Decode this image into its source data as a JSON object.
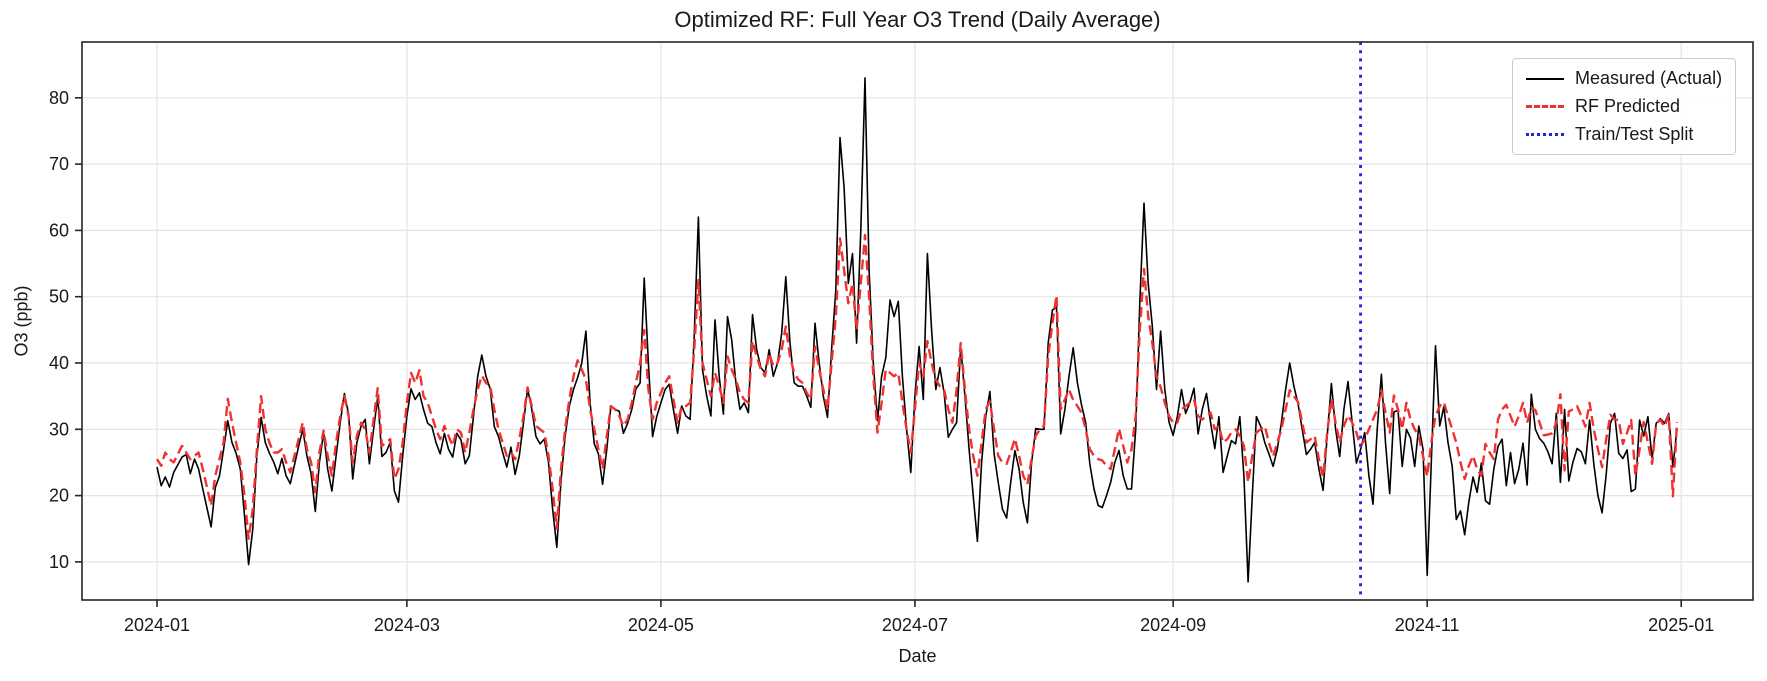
{
  "chart_data": {
    "type": "line",
    "title": "Optimized RF: Full Year O3 Trend (Daily Average)",
    "xlabel": "Date",
    "ylabel": "O3 (ppb)",
    "x_unit": "days since 2024-01-01",
    "grid": true,
    "legend_position": "upper right",
    "ylim": [
      4.3,
      88.4
    ],
    "xlim_days": [
      -18,
      383
    ],
    "y_ticks": [
      10,
      20,
      30,
      40,
      50,
      60,
      70,
      80
    ],
    "x_ticks": [
      {
        "label": "2024-01",
        "day": 0
      },
      {
        "label": "2024-03",
        "day": 60
      },
      {
        "label": "2024-05",
        "day": 121
      },
      {
        "label": "2024-07",
        "day": 182
      },
      {
        "label": "2024-09",
        "day": 244
      },
      {
        "label": "2024-11",
        "day": 305
      },
      {
        "label": "2025-01",
        "day": 366
      }
    ],
    "x_days": [
      0,
      1,
      2,
      3,
      4,
      6,
      7,
      8,
      9,
      10,
      11,
      13,
      14,
      15,
      16,
      17,
      18,
      19,
      20,
      21,
      22,
      23,
      24,
      25,
      26,
      27,
      28,
      29,
      30,
      31,
      32,
      34,
      35,
      36,
      37,
      38,
      39,
      40,
      41,
      42,
      43,
      44,
      45,
      46,
      47,
      48,
      49,
      50,
      51,
      52,
      53,
      54,
      55,
      56,
      57,
      58,
      59,
      60,
      61,
      62,
      63,
      64,
      65,
      66,
      67,
      68,
      69,
      70,
      71,
      72,
      73,
      74,
      75,
      76,
      77,
      78,
      79,
      80,
      81,
      82,
      83,
      84,
      85,
      86,
      87,
      88,
      89,
      90,
      91,
      92,
      93,
      94,
      95,
      96,
      97,
      98,
      99,
      100,
      101,
      102,
      103,
      104,
      105,
      106,
      107,
      108,
      109,
      110,
      111,
      112,
      113,
      114,
      115,
      116,
      117,
      118,
      119,
      120,
      121,
      122,
      123,
      124,
      125,
      126,
      127,
      128,
      129,
      130,
      131,
      132,
      133,
      134,
      135,
      136,
      137,
      138,
      139,
      140,
      141,
      142,
      143,
      144,
      145,
      146,
      147,
      148,
      149,
      150,
      151,
      152,
      153,
      154,
      155,
      156,
      157,
      158,
      159,
      160,
      161,
      162,
      163,
      164,
      165,
      166,
      167,
      168,
      169,
      170,
      171,
      172,
      173,
      174,
      175,
      176,
      177,
      178,
      179,
      180,
      181,
      182,
      183,
      184,
      185,
      186,
      187,
      188,
      189,
      190,
      191,
      192,
      193,
      194,
      195,
      196,
      197,
      198,
      199,
      200,
      201,
      202,
      203,
      204,
      205,
      206,
      207,
      208,
      209,
      210,
      211,
      212,
      213,
      214,
      215,
      216,
      217,
      218,
      219,
      220,
      221,
      222,
      223,
      224,
      225,
      226,
      227,
      228,
      229,
      230,
      231,
      232,
      233,
      234,
      235,
      236,
      237,
      238,
      239,
      240,
      241,
      242,
      243,
      244,
      245,
      246,
      247,
      248,
      249,
      250,
      251,
      252,
      253,
      254,
      255,
      256,
      257,
      258,
      259,
      260,
      261,
      262,
      263,
      264,
      265,
      266,
      267,
      268,
      269,
      270,
      271,
      272,
      273,
      274,
      275,
      276,
      277,
      278,
      279,
      280,
      281,
      282,
      283,
      284,
      285,
      286,
      287,
      288,
      289,
      290,
      291,
      292,
      293,
      294,
      295,
      296,
      297,
      298,
      299,
      300,
      301,
      302,
      303,
      304,
      305,
      306,
      307,
      308,
      309,
      310,
      311,
      312,
      313,
      314,
      315,
      316,
      317,
      318,
      319,
      320,
      321,
      322,
      323,
      324,
      325,
      326,
      327,
      328,
      329,
      330,
      331,
      332,
      333,
      334,
      335,
      336,
      337,
      338,
      339,
      340,
      341,
      342,
      343,
      344,
      345,
      346,
      347,
      348,
      349,
      350,
      351,
      352,
      353,
      354,
      355,
      356,
      357,
      358,
      359,
      360,
      361,
      362,
      363,
      364,
      365
    ],
    "series": [
      {
        "name": "Measured (Actual)",
        "color": "#000000",
        "line_style": "solid",
        "values": [
          24.3,
          21.5,
          22.8,
          21.3,
          23.5,
          25.8,
          26.2,
          23.3,
          25.5,
          24.0,
          21.0,
          15.3,
          21.2,
          23.0,
          27.0,
          31.3,
          28.0,
          26.4,
          24.0,
          17.0,
          9.6,
          15.0,
          26.0,
          31.8,
          28.0,
          26.4,
          25.1,
          23.3,
          25.6,
          23.0,
          21.8,
          27.4,
          30.0,
          26.0,
          23.3,
          17.6,
          25.0,
          29.5,
          24.0,
          20.7,
          26.0,
          31.0,
          35.4,
          32.3,
          22.5,
          28.0,
          30.5,
          31.5,
          24.8,
          30.0,
          34.9,
          25.9,
          26.5,
          28.0,
          20.7,
          19.0,
          26.0,
          32.0,
          36.1,
          34.5,
          35.5,
          33.0,
          30.9,
          30.4,
          28.0,
          26.3,
          29.4,
          27.0,
          25.8,
          29.4,
          28.4,
          24.8,
          26.0,
          32.0,
          38.0,
          41.2,
          38.0,
          36.1,
          30.4,
          28.9,
          26.5,
          24.3,
          27.3,
          23.2,
          26.0,
          31.0,
          36.1,
          33.0,
          28.9,
          27.8,
          28.5,
          25.0,
          18.0,
          12.2,
          22.2,
          28.9,
          33.5,
          36.0,
          37.8,
          40.0,
          44.8,
          34.0,
          27.8,
          26.3,
          21.7,
          27.0,
          33.5,
          33.0,
          32.7,
          29.4,
          30.9,
          33.0,
          36.1,
          37.0,
          52.8,
          40.0,
          28.9,
          31.9,
          34.0,
          36.0,
          36.8,
          33.0,
          29.4,
          33.5,
          32.0,
          31.5,
          44.0,
          62.0,
          39.0,
          35.0,
          32.0,
          46.5,
          38.0,
          32.3,
          47.0,
          43.5,
          37.0,
          33.0,
          34.0,
          32.5,
          47.3,
          42.0,
          39.3,
          38.5,
          42.0,
          38.0,
          40.0,
          44.5,
          53.0,
          43.0,
          37.0,
          36.5,
          36.5,
          35.0,
          33.3,
          46.0,
          40.0,
          35.0,
          31.8,
          42.0,
          51.0,
          74.0,
          66.5,
          52.0,
          56.5,
          43.0,
          60.0,
          83.0,
          54.0,
          40.0,
          31.3,
          38.0,
          40.8,
          49.5,
          47.0,
          49.3,
          38.0,
          30.0,
          23.5,
          35.0,
          42.5,
          34.5,
          56.5,
          45.0,
          36.0,
          39.3,
          35.5,
          28.8,
          30.0,
          31.0,
          42.5,
          35.0,
          27.0,
          20.0,
          13.1,
          25.0,
          31.9,
          35.7,
          26.3,
          22.0,
          18.0,
          16.6,
          22.0,
          26.8,
          24.0,
          19.0,
          15.9,
          24.8,
          30.1,
          30.0,
          30.0,
          43.0,
          48.0,
          48.4,
          29.3,
          33.0,
          38.0,
          42.3,
          37.0,
          33.7,
          31.0,
          24.8,
          21.0,
          18.5,
          18.2,
          20.0,
          22.0,
          25.0,
          26.8,
          23.0,
          21.0,
          21.0,
          30.0,
          49.1,
          64.1,
          52.0,
          45.6,
          36.0,
          44.8,
          36.0,
          31.1,
          29.1,
          31.9,
          36.0,
          32.4,
          34.0,
          36.2,
          29.3,
          33.0,
          35.4,
          31.0,
          27.1,
          31.9,
          23.5,
          26.0,
          28.3,
          27.8,
          31.9,
          23.0,
          7.0,
          20.0,
          31.9,
          30.5,
          28.0,
          26.3,
          24.4,
          27.0,
          31.0,
          36.0,
          40.0,
          36.5,
          33.8,
          30.0,
          26.2,
          27.0,
          28.0,
          24.0,
          20.8,
          29.0,
          36.9,
          30.0,
          25.9,
          33.0,
          37.2,
          31.0,
          24.9,
          26.9,
          29.5,
          23.0,
          18.7,
          30.0,
          38.3,
          28.0,
          20.3,
          32.6,
          32.9,
          24.4,
          30.0,
          28.7,
          24.4,
          30.5,
          27.0,
          8.0,
          25.0,
          42.6,
          30.5,
          33.4,
          28.0,
          24.4,
          16.4,
          17.7,
          14.1,
          19.0,
          22.8,
          20.5,
          24.9,
          19.2,
          18.7,
          24.0,
          27.4,
          28.5,
          21.5,
          26.5,
          21.8,
          24.0,
          27.9,
          21.6,
          35.3,
          30.0,
          28.6,
          27.9,
          26.6,
          24.8,
          32.4,
          22.0,
          33.0,
          22.2,
          25.0,
          27.1,
          26.6,
          24.8,
          31.4,
          24.8,
          20.0,
          17.4,
          23.2,
          30.9,
          32.4,
          26.4,
          25.6,
          26.9,
          20.6,
          21.0,
          31.4,
          29.0,
          31.9,
          25.6,
          30.9,
          31.6,
          30.9,
          32.4,
          24.3,
          30.1
        ]
      },
      {
        "name": "RF Predicted",
        "color": "#ee3232",
        "line_style": "dashed",
        "values": [
          25.5,
          24.5,
          26.5,
          25.5,
          25.0,
          27.5,
          26.5,
          25.5,
          26.0,
          26.5,
          24.0,
          18.5,
          23.0,
          25.5,
          28.0,
          34.6,
          31.0,
          28.0,
          25.0,
          20.0,
          13.5,
          18.0,
          27.0,
          35.0,
          30.0,
          28.0,
          26.5,
          26.5,
          27.0,
          25.0,
          23.5,
          28.5,
          31.0,
          27.0,
          25.0,
          20.5,
          26.5,
          29.8,
          26.0,
          23.0,
          28.0,
          32.0,
          35.0,
          32.0,
          25.0,
          29.0,
          31.0,
          30.0,
          26.5,
          31.5,
          36.2,
          27.5,
          28.0,
          28.5,
          22.5,
          24.0,
          28.0,
          34.0,
          38.5,
          37.0,
          38.9,
          35.0,
          34.0,
          32.0,
          30.0,
          28.5,
          30.5,
          29.0,
          27.5,
          30.0,
          29.5,
          26.5,
          29.5,
          33.0,
          36.0,
          38.1,
          37.0,
          36.5,
          33.0,
          30.0,
          28.0,
          26.0,
          26.5,
          25.5,
          28.5,
          32.0,
          36.3,
          33.5,
          30.5,
          30.0,
          29.5,
          26.0,
          21.0,
          15.0,
          24.0,
          30.0,
          34.5,
          38.0,
          40.4,
          39.0,
          37.5,
          33.0,
          30.0,
          27.0,
          24.0,
          29.0,
          33.5,
          33.0,
          32.0,
          30.5,
          31.5,
          34.0,
          37.0,
          40.0,
          45.0,
          36.0,
          31.5,
          34.0,
          35.5,
          37.0,
          38.0,
          34.5,
          31.0,
          33.5,
          33.5,
          34.0,
          42.0,
          52.5,
          40.0,
          37.5,
          35.0,
          38.5,
          36.5,
          34.0,
          41.0,
          39.0,
          37.5,
          35.5,
          34.5,
          34.0,
          43.3,
          41.0,
          39.0,
          38.0,
          41.5,
          39.5,
          40.0,
          42.0,
          45.5,
          41.0,
          38.5,
          37.5,
          37.0,
          35.5,
          34.5,
          42.5,
          39.0,
          36.0,
          33.0,
          40.0,
          47.0,
          58.8,
          54.0,
          49.0,
          52.0,
          45.0,
          52.0,
          59.3,
          50.0,
          38.0,
          29.5,
          34.0,
          39.0,
          38.5,
          38.0,
          38.5,
          34.0,
          30.0,
          26.5,
          33.0,
          40.0,
          38.0,
          43.3,
          40.0,
          37.5,
          36.5,
          36.0,
          33.0,
          31.0,
          36.0,
          43.0,
          36.0,
          30.0,
          26.0,
          23.0,
          28.0,
          33.0,
          34.2,
          30.0,
          26.0,
          25.0,
          24.8,
          26.5,
          28.6,
          26.0,
          23.0,
          21.7,
          25.5,
          29.0,
          30.0,
          30.5,
          41.0,
          46.0,
          50.2,
          33.0,
          34.5,
          36.0,
          34.4,
          33.5,
          32.5,
          30.0,
          27.0,
          26.0,
          25.5,
          25.3,
          24.5,
          24.0,
          27.0,
          30.1,
          27.5,
          25.0,
          27.0,
          32.0,
          45.0,
          54.2,
          47.0,
          43.0,
          38.0,
          36.4,
          34.0,
          32.0,
          31.0,
          31.0,
          33.0,
          33.5,
          34.0,
          34.5,
          32.0,
          31.5,
          32.0,
          32.5,
          30.0,
          30.5,
          28.0,
          28.5,
          29.5,
          30.0,
          29.0,
          27.5,
          22.0,
          26.0,
          29.5,
          30.0,
          30.5,
          28.0,
          25.9,
          28.0,
          30.0,
          33.0,
          35.9,
          35.0,
          34.1,
          31.0,
          28.0,
          28.5,
          29.0,
          25.5,
          22.8,
          29.5,
          34.6,
          31.0,
          28.0,
          30.5,
          32.1,
          31.0,
          29.5,
          27.4,
          28.5,
          30.0,
          31.5,
          33.0,
          35.9,
          32.5,
          29.5,
          35.1,
          33.0,
          30.0,
          34.0,
          31.5,
          30.0,
          29.0,
          26.0,
          22.9,
          28.0,
          32.0,
          33.5,
          34.1,
          32.0,
          30.0,
          28.0,
          25.0,
          22.5,
          24.5,
          26.0,
          24.0,
          23.0,
          27.8,
          26.5,
          25.5,
          31.5,
          33.0,
          33.7,
          32.0,
          30.4,
          32.0,
          34.0,
          31.0,
          33.2,
          32.9,
          31.0,
          29.1,
          29.2,
          29.4,
          31.0,
          35.3,
          23.8,
          32.7,
          33.0,
          33.5,
          32.0,
          30.4,
          34.0,
          30.0,
          27.0,
          24.3,
          28.5,
          32.2,
          31.5,
          31.4,
          27.8,
          29.5,
          31.4,
          23.0,
          27.0,
          31.1,
          28.0,
          24.8,
          30.9,
          31.4,
          30.4,
          32.2,
          19.9,
          31.1
        ]
      },
      {
        "name": "Train/Test Split",
        "color": "#2222e0",
        "line_style": "dotted-vertical",
        "x_day": 289
      }
    ]
  }
}
